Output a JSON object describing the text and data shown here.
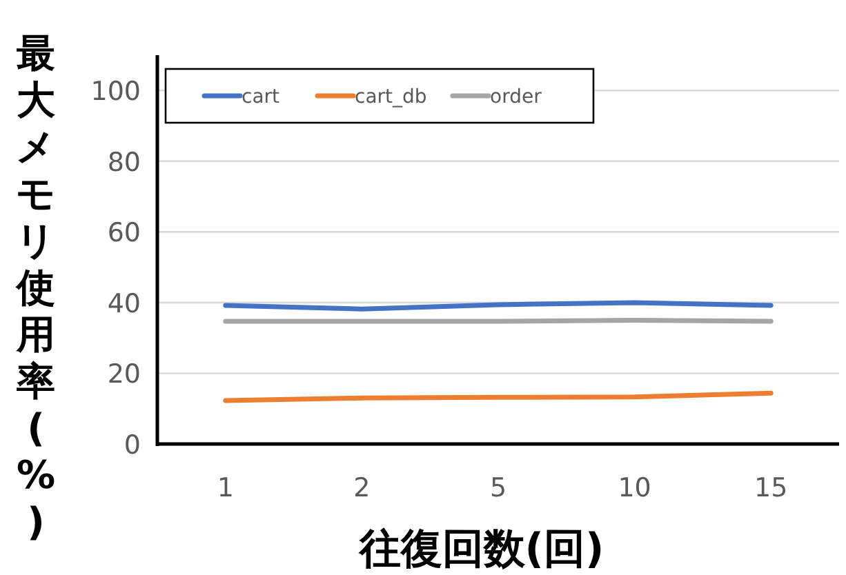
{
  "chart_data": {
    "type": "line",
    "xlabel": "往復回数(回)",
    "ylabel": "最大メモリ使用率(%)",
    "categories": [
      "1",
      "2",
      "5",
      "10",
      "15"
    ],
    "series": [
      {
        "name": "cart",
        "color": "#4472c4",
        "values": [
          39.2,
          38.2,
          39.4,
          40.0,
          39.2
        ]
      },
      {
        "name": "cart_db",
        "color": "#ed7d31",
        "values": [
          12.3,
          13.0,
          13.2,
          13.3,
          14.4
        ]
      },
      {
        "name": "order",
        "color": "#a5a5a5",
        "values": [
          34.7,
          34.7,
          34.7,
          35.0,
          34.7
        ]
      }
    ],
    "ylim": [
      0,
      110
    ],
    "yticks": [
      0,
      20,
      40,
      60,
      80,
      100
    ],
    "grid": "y",
    "legend": "top left",
    "line_style": "solid",
    "marker": "none"
  }
}
